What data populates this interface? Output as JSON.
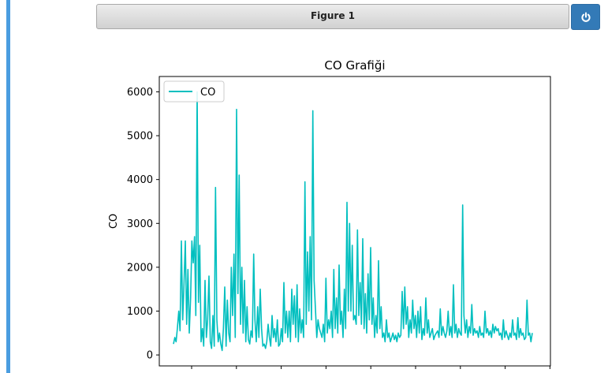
{
  "figure": {
    "title": "Figure 1",
    "close_icon": "power-icon"
  },
  "colors": {
    "line": "#00bfbf",
    "header_button": "#337ab7",
    "accent_bar": "#4a9de0"
  },
  "chart_data": {
    "type": "line",
    "title": "CO Grafiği",
    "xlabel": "",
    "ylabel": "CO",
    "legend": {
      "labels": [
        "CO"
      ],
      "placement": "top-left"
    },
    "grid": false,
    "ylim": [
      -250,
      6350
    ],
    "yticks": [
      0,
      1000,
      2000,
      3000,
      4000,
      5000,
      6000
    ],
    "x_tick_count": 9,
    "series": [
      {
        "name": "CO",
        "color": "#00bfbf",
        "values": [
          250,
          400,
          300,
          620,
          1000,
          550,
          2600,
          800,
          1600,
          2600,
          700,
          1950,
          500,
          1300,
          2600,
          2100,
          2700,
          900,
          6000,
          1200,
          2500,
          300,
          600,
          200,
          1700,
          400,
          800,
          1800,
          300,
          150,
          900,
          200,
          3820,
          800,
          300,
          500,
          250,
          100,
          600,
          1550,
          200,
          1250,
          500,
          300,
          2000,
          900,
          2300,
          400,
          5600,
          1400,
          4100,
          700,
          2000,
          500,
          1700,
          300,
          1100,
          350,
          250,
          550,
          400,
          2300,
          800,
          300,
          1100,
          400,
          1500,
          600,
          200,
          250,
          150,
          300,
          700,
          400,
          200,
          900,
          400,
          600,
          300,
          800,
          200,
          250,
          600,
          300,
          1650,
          500,
          1000,
          400,
          1000,
          300,
          1500,
          700,
          1350,
          400,
          1600,
          300,
          1050,
          500,
          800,
          400,
          3950,
          700,
          2350,
          1000,
          2700,
          800,
          5570,
          1700,
          1050,
          400,
          800,
          600,
          500,
          400,
          700,
          300,
          1750,
          500,
          800,
          600,
          1000,
          400,
          1950,
          600,
          1300,
          500,
          2050,
          700,
          1000,
          400,
          1500,
          600,
          3480,
          1000,
          3000,
          1000,
          2500,
          800,
          900,
          700,
          2850,
          900,
          1650,
          700,
          2650,
          600,
          1400,
          500,
          1850,
          800,
          2450,
          700,
          1300,
          400,
          900,
          500,
          2150,
          600,
          1100,
          400,
          500,
          300,
          800,
          400,
          500,
          300,
          400,
          500,
          350,
          450,
          300,
          500,
          400,
          450,
          1450,
          600,
          1550,
          700,
          1100,
          400,
          800,
          500,
          1250,
          600,
          900,
          400,
          1000,
          500,
          1100,
          350,
          600,
          450,
          1300,
          500,
          800,
          400,
          500,
          600,
          350,
          450,
          500,
          550,
          400,
          1050,
          450,
          650,
          500,
          400,
          550,
          1000,
          450,
          650,
          400,
          1600,
          500,
          700,
          400,
          600,
          500,
          450,
          3420,
          900,
          500,
          800,
          400,
          650,
          500,
          1150,
          450,
          600,
          500,
          550,
          400,
          650,
          450,
          500,
          400,
          1000,
          500,
          600,
          450,
          550,
          400,
          700,
          500,
          650,
          550,
          600,
          450,
          500,
          350,
          800,
          400,
          550,
          450,
          350,
          500,
          400,
          800,
          450,
          500,
          350,
          850,
          400,
          600,
          450,
          500,
          350,
          400,
          1250,
          450,
          500,
          300,
          500
        ]
      }
    ]
  }
}
